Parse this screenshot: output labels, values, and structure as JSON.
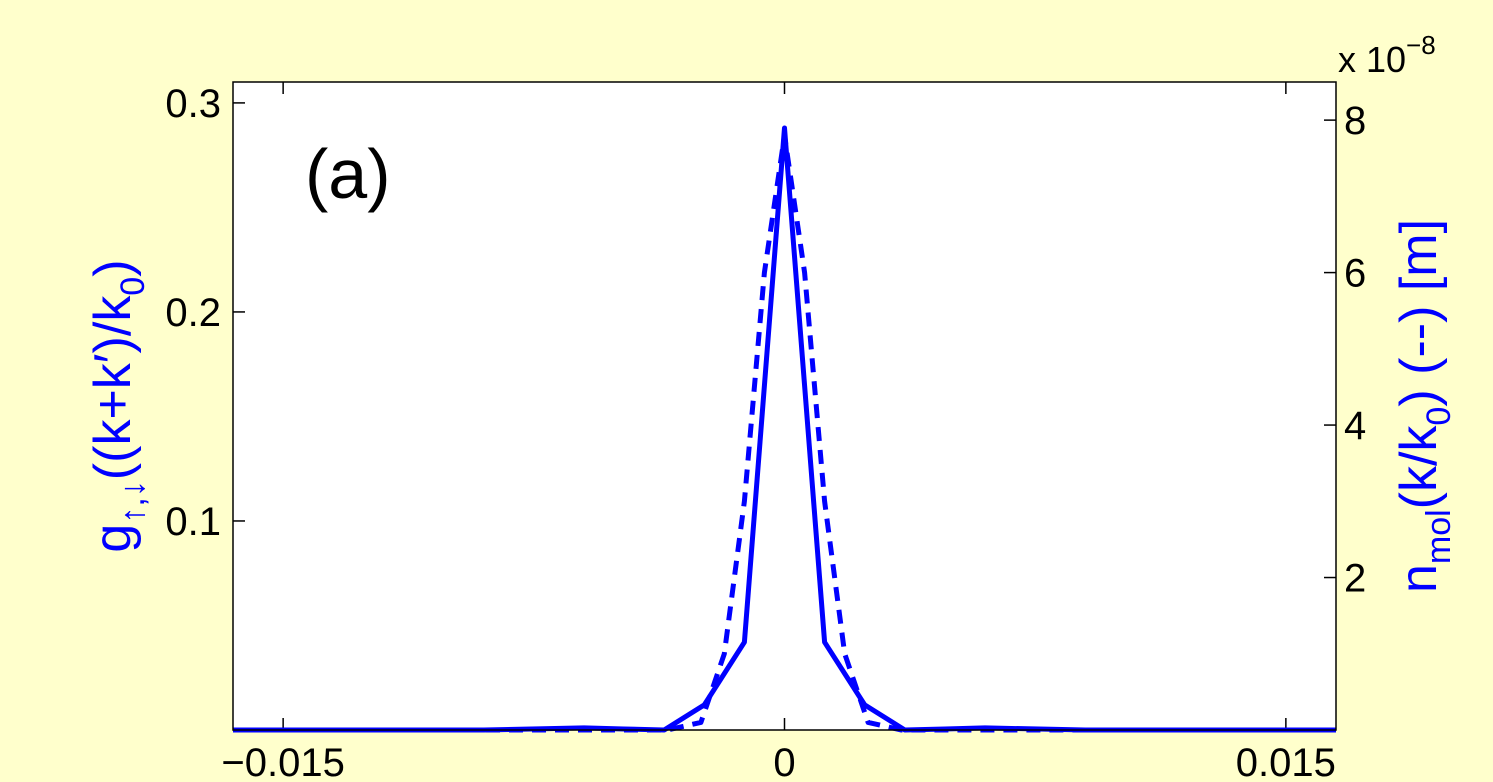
{
  "chart_data": {
    "type": "line",
    "panel_label": "(a)",
    "ylabel_left": {
      "base": "g",
      "sub": "↑,↓",
      "rest": "((k+k′)/k",
      "rest_sub": "0",
      "tail": ")"
    },
    "ylabel_right": {
      "base": "n",
      "sub": "mol",
      "rest": "(k/k",
      "rest_sub": "0",
      "tail": ") (--) [m]"
    },
    "right_axis_multiplier": {
      "prefix": "x 10",
      "exponent": "−8"
    },
    "xlim": [
      -0.0165,
      0.0165
    ],
    "ylim_left": [
      0,
      0.31
    ],
    "ylim_right": [
      0,
      8.5
    ],
    "xticks": [
      {
        "value": -0.015,
        "label": "−0.015"
      },
      {
        "value": 0,
        "label": "0"
      },
      {
        "value": 0.015,
        "label": "0.015"
      }
    ],
    "yticks_left": [
      {
        "value": 0.1,
        "label": "0.1"
      },
      {
        "value": 0.2,
        "label": "0.2"
      },
      {
        "value": 0.3,
        "label": "0.3"
      }
    ],
    "yticks_right": [
      {
        "value": 2,
        "label": "2"
      },
      {
        "value": 4,
        "label": "4"
      },
      {
        "value": 6,
        "label": "6"
      },
      {
        "value": 8,
        "label": "8"
      }
    ],
    "series": [
      {
        "axis": "left",
        "style": "solid",
        "color": "#0000FF",
        "x": [
          -0.0165,
          -0.009,
          -0.006,
          -0.0048,
          -0.0036,
          -0.0024,
          -0.0012,
          0,
          0.0012,
          0.0024,
          0.0036,
          0.0048,
          0.006,
          0.009,
          0.0165
        ],
        "y": [
          0,
          0,
          0.001,
          0.0005,
          0,
          0.012,
          0.042,
          0.288,
          0.042,
          0.012,
          0,
          0.0005,
          0.001,
          0,
          0
        ]
      },
      {
        "axis": "right",
        "style": "dashed",
        "color": "#0000FF",
        "x": [
          -0.0165,
          -0.0035,
          -0.0025,
          -0.0018,
          -0.0012,
          -0.0006,
          0,
          0.0006,
          0.0012,
          0.0018,
          0.0025,
          0.0035,
          0.0165
        ],
        "y": [
          0,
          0,
          0.1,
          1.0,
          3.0,
          6.0,
          7.8,
          6.0,
          3.0,
          1.0,
          0.1,
          0,
          0
        ]
      }
    ],
    "colors": {
      "background": "#FFFFCC",
      "plot_area": "#FFFFFF",
      "line": "#0000FF",
      "axes": "#000000"
    }
  }
}
